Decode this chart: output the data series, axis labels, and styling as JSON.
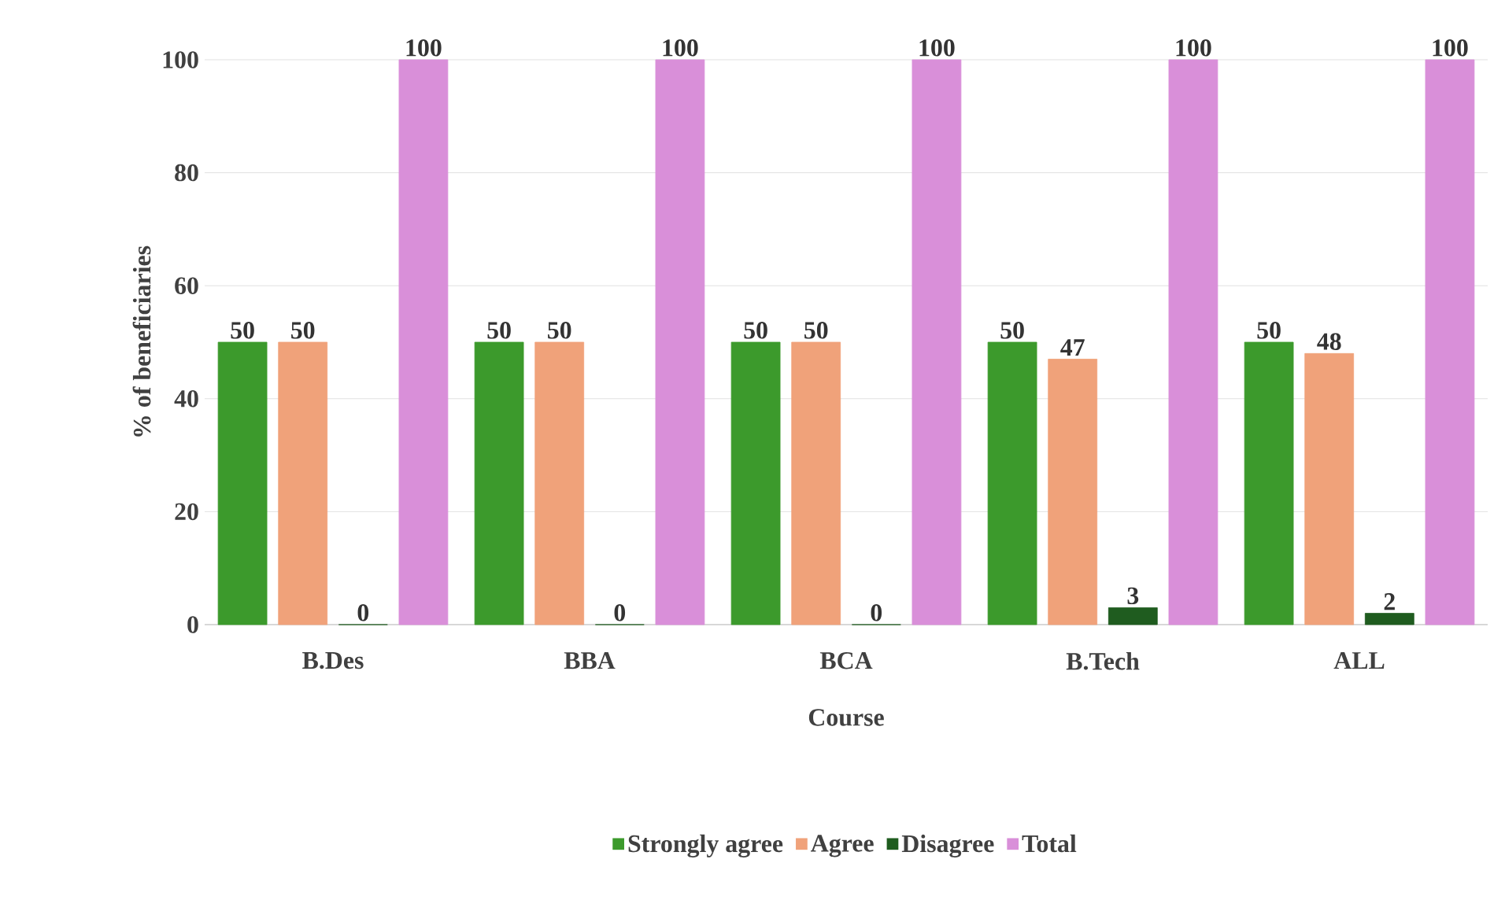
{
  "chart_data": {
    "type": "bar",
    "xlabel": "Course",
    "ylabel": "% of beneficiaries",
    "categories": [
      "B.Des",
      "BBA",
      "BCA",
      "B.Tech",
      "ALL"
    ],
    "series": [
      {
        "name": "Strongly agree",
        "color": "#3c9a2c",
        "values": [
          50,
          50,
          50,
          50,
          50
        ]
      },
      {
        "name": "Agree",
        "color": "#f0a27a",
        "values": [
          50,
          50,
          50,
          47,
          48
        ]
      },
      {
        "name": "Disagree",
        "color": "#1f5c1f",
        "values": [
          0,
          0,
          0,
          3,
          2
        ]
      },
      {
        "name": "Total",
        "color": "#d98fd9",
        "values": [
          100,
          100,
          100,
          100,
          100
        ]
      }
    ],
    "ylim": [
      0,
      100
    ],
    "yticks": [
      0,
      20,
      40,
      60,
      80,
      100
    ],
    "grid": "y",
    "legend": "bottom",
    "data_labels": true
  }
}
